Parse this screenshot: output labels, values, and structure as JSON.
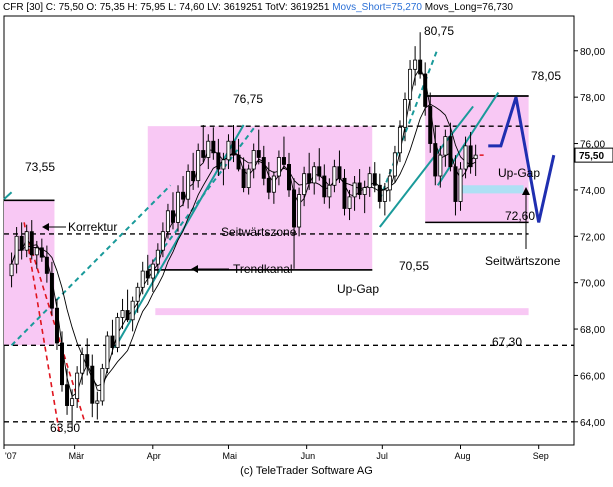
{
  "header": {
    "symbol": "CFR [30]",
    "close": "C: 75,50",
    "open": "O: 75,35",
    "high": "H: 75,95",
    "low": "L: 74,60",
    "lv": "LV: 3619251",
    "totv": "TotV: 3619251",
    "movs_short": "Movs_Short=75,270",
    "movs_long": "Movs_Long=76,730"
  },
  "footer": {
    "copyright": "(c) TeleTrader Software AG"
  },
  "colors": {
    "zone_fill": "#f8c8f4",
    "candle_up": "#ffffff",
    "candle_down": "#000000",
    "trend": "#1a9a9a",
    "correction": "#e0141e",
    "projection": "#1f2fb0",
    "price_marker": "#e0141e",
    "upgap_fill": "#aee0f4"
  },
  "chart_data": {
    "type": "candlestick",
    "instrument": "CFR",
    "y_axis": {
      "min": 63.0,
      "max": 81.5,
      "ticks": [
        "64,00",
        "66,00",
        "68,00",
        "70,00",
        "72,00",
        "74,00",
        "76,00",
        "78,00",
        "80,00"
      ],
      "tick_values": [
        64,
        66,
        68,
        70,
        72,
        74,
        76,
        78,
        80
      ],
      "position": "right"
    },
    "x_axis": {
      "labels": [
        "'07",
        "Mär",
        "Apr",
        "Mai",
        "Jun",
        "Jul",
        "Aug",
        "Sep"
      ],
      "label_positions_day": [
        0,
        28,
        59,
        89,
        120,
        150,
        181,
        212
      ],
      "range_day": [
        0,
        226
      ]
    },
    "last_price": "75,50",
    "last_value": 75.5,
    "candles_ohlc": [
      [
        3,
        70.3,
        71.3,
        69.8,
        70.8
      ],
      [
        5,
        70.8,
        72.4,
        70.4,
        72.0
      ],
      [
        7,
        72.0,
        72.6,
        71.0,
        71.4
      ],
      [
        9,
        71.4,
        72.5,
        71.1,
        72.2
      ],
      [
        11,
        72.2,
        72.7,
        71.0,
        71.2
      ],
      [
        13,
        71.2,
        71.8,
        70.6,
        71.5
      ],
      [
        15,
        71.5,
        71.9,
        70.9,
        71.1
      ],
      [
        17,
        71.1,
        71.6,
        70.0,
        70.4
      ],
      [
        19,
        70.4,
        70.9,
        68.6,
        68.9
      ],
      [
        21,
        68.9,
        69.3,
        67.1,
        67.4
      ],
      [
        23,
        67.4,
        67.9,
        65.3,
        65.6
      ],
      [
        25,
        65.6,
        66.3,
        64.3,
        64.7
      ],
      [
        27,
        64.7,
        65.4,
        63.6,
        65.0
      ],
      [
        29,
        65.0,
        66.4,
        64.6,
        66.1
      ],
      [
        31,
        66.1,
        67.2,
        65.6,
        66.9
      ],
      [
        33,
        66.9,
        67.6,
        66.0,
        66.4
      ],
      [
        35,
        66.4,
        66.9,
        64.2,
        64.8
      ],
      [
        37,
        64.8,
        65.3,
        64.1,
        64.9
      ],
      [
        39,
        64.9,
        66.5,
        64.7,
        66.3
      ],
      [
        41,
        66.3,
        67.9,
        66.1,
        67.7
      ],
      [
        43,
        67.7,
        68.4,
        66.9,
        67.2
      ],
      [
        45,
        67.2,
        68.7,
        67.0,
        68.5
      ],
      [
        47,
        68.5,
        69.3,
        68.0,
        68.8
      ],
      [
        49,
        68.8,
        69.7,
        68.3,
        68.4
      ],
      [
        51,
        68.4,
        69.4,
        67.9,
        69.2
      ],
      [
        53,
        69.2,
        70.0,
        68.7,
        69.8
      ],
      [
        55,
        69.8,
        70.9,
        69.5,
        70.5
      ],
      [
        57,
        70.5,
        71.2,
        69.9,
        70.2
      ],
      [
        59,
        70.2,
        71.0,
        69.6,
        70.8
      ],
      [
        61,
        70.8,
        71.7,
        70.4,
        71.4
      ],
      [
        63,
        71.4,
        72.6,
        71.1,
        72.2
      ],
      [
        65,
        72.2,
        73.4,
        71.9,
        73.1
      ],
      [
        67,
        73.1,
        73.9,
        72.3,
        72.6
      ],
      [
        69,
        72.6,
        74.2,
        72.2,
        73.9
      ],
      [
        71,
        73.9,
        74.6,
        73.3,
        73.6
      ],
      [
        73,
        73.6,
        75.1,
        73.2,
        74.8
      ],
      [
        75,
        74.8,
        75.6,
        74.0,
        74.4
      ],
      [
        77,
        74.4,
        76.0,
        74.1,
        75.7
      ],
      [
        79,
        75.7,
        76.8,
        75.2,
        75.4
      ],
      [
        81,
        75.4,
        76.4,
        74.9,
        76.1
      ],
      [
        83,
        76.1,
        76.7,
        75.3,
        75.6
      ],
      [
        85,
        75.6,
        76.2,
        74.6,
        74.9
      ],
      [
        87,
        74.9,
        75.6,
        74.2,
        75.3
      ],
      [
        89,
        75.3,
        76.4,
        74.9,
        76.1
      ],
      [
        91,
        76.1,
        76.8,
        75.2,
        75.5
      ],
      [
        93,
        75.5,
        76.2,
        74.8,
        74.9
      ],
      [
        95,
        74.9,
        75.4,
        73.9,
        74.1
      ],
      [
        97,
        74.1,
        75.1,
        73.8,
        74.9
      ],
      [
        99,
        74.9,
        76.0,
        74.5,
        75.7
      ],
      [
        101,
        75.7,
        76.6,
        75.1,
        75.4
      ],
      [
        103,
        75.4,
        75.9,
        74.2,
        74.5
      ],
      [
        105,
        74.5,
        75.2,
        73.6,
        73.9
      ],
      [
        107,
        73.9,
        74.8,
        73.4,
        74.6
      ],
      [
        109,
        74.6,
        75.7,
        74.2,
        75.4
      ],
      [
        111,
        75.4,
        76.3,
        74.9,
        75.1
      ],
      [
        113,
        75.1,
        75.6,
        73.7,
        74.0
      ],
      [
        115,
        74.0,
        74.5,
        70.6,
        72.4
      ],
      [
        117,
        72.4,
        74.1,
        72.0,
        73.8
      ],
      [
        119,
        73.8,
        75.0,
        73.3,
        74.7
      ],
      [
        121,
        74.7,
        75.6,
        74.0,
        74.3
      ],
      [
        123,
        74.3,
        75.2,
        73.8,
        75.0
      ],
      [
        125,
        75.0,
        75.8,
        74.4,
        74.6
      ],
      [
        127,
        74.6,
        75.1,
        73.4,
        73.7
      ],
      [
        129,
        73.7,
        74.5,
        73.2,
        74.2
      ],
      [
        131,
        74.2,
        75.3,
        73.9,
        75.0
      ],
      [
        133,
        75.0,
        75.7,
        74.3,
        74.5
      ],
      [
        135,
        74.5,
        74.9,
        72.9,
        73.2
      ],
      [
        137,
        73.2,
        74.0,
        72.7,
        73.7
      ],
      [
        139,
        73.7,
        74.6,
        73.1,
        74.3
      ],
      [
        141,
        74.3,
        74.9,
        73.6,
        73.8
      ],
      [
        143,
        73.8,
        74.4,
        73.0,
        74.1
      ],
      [
        145,
        74.1,
        75.0,
        73.7,
        74.7
      ],
      [
        147,
        74.7,
        75.2,
        73.9,
        74.2
      ],
      [
        149,
        74.2,
        74.7,
        73.2,
        73.5
      ],
      [
        151,
        73.5,
        74.3,
        72.9,
        74.0
      ],
      [
        153,
        74.0,
        74.9,
        73.5,
        74.6
      ],
      [
        155,
        74.6,
        75.9,
        74.3,
        75.6
      ],
      [
        157,
        75.6,
        77.0,
        75.2,
        76.7
      ],
      [
        159,
        76.7,
        78.2,
        76.1,
        77.9
      ],
      [
        161,
        77.9,
        79.6,
        77.4,
        79.2
      ],
      [
        163,
        79.2,
        80.2,
        78.5,
        79.6
      ],
      [
        165,
        79.6,
        80.8,
        78.8,
        79.0
      ],
      [
        167,
        79.0,
        79.5,
        77.2,
        77.6
      ],
      [
        169,
        77.6,
        78.2,
        75.6,
        76.0
      ],
      [
        171,
        76.0,
        76.8,
        74.2,
        74.6
      ],
      [
        173,
        74.6,
        75.9,
        74.1,
        75.5
      ],
      [
        175,
        75.5,
        76.6,
        75.0,
        76.3
      ],
      [
        177,
        76.3,
        76.9,
        74.8,
        75.0
      ],
      [
        179,
        75.0,
        75.5,
        72.9,
        73.5
      ],
      [
        181,
        73.5,
        75.2,
        73.1,
        74.9
      ],
      [
        183,
        74.9,
        76.3,
        74.5,
        75.9
      ],
      [
        185,
        75.9,
        76.5,
        74.7,
        75.0
      ],
      [
        187,
        75.35,
        75.95,
        74.6,
        75.5
      ]
    ],
    "annotations": [
      {
        "text": "80,75",
        "value": 80.75,
        "kind": "high-label"
      },
      {
        "text": "78,05",
        "value": 78.05,
        "kind": "resistance"
      },
      {
        "text": "76,75",
        "value": 76.75,
        "kind": "resistance"
      },
      {
        "text": "73,55",
        "value": 73.55,
        "kind": "resistance"
      },
      {
        "text": "72,60",
        "value": 72.6,
        "kind": "support"
      },
      {
        "text": "70,55",
        "value": 70.55,
        "kind": "support"
      },
      {
        "text": "67,30",
        "value": 67.3,
        "kind": "support"
      },
      {
        "text": "63,50",
        "value": 63.5,
        "kind": "low-label"
      },
      {
        "text": "Korrektur",
        "kind": "note"
      },
      {
        "text": "Trendkanal",
        "kind": "note"
      },
      {
        "text": "Seitwärtszone",
        "kind": "zone"
      },
      {
        "text": "Seitwärtszone",
        "kind": "zone-arrow"
      },
      {
        "text": "Up-Gap",
        "kind": "gap"
      },
      {
        "text": "Up-Gap",
        "kind": "gap"
      }
    ],
    "horizontal_levels": [
      64.0,
      67.3,
      70.55,
      72.1,
      73.55,
      76.75,
      78.05
    ],
    "zones": [
      {
        "name": "Seitwärtszone",
        "day_from": 0,
        "day_to": 20,
        "y_from": 67.3,
        "y_to": 73.55
      },
      {
        "name": "Seitwärtszone",
        "day_from": 57,
        "day_to": 146,
        "y_from": 70.55,
        "y_to": 76.75
      },
      {
        "name": "Seitwärtszone",
        "day_from": 167,
        "day_to": 208,
        "y_from": 72.6,
        "y_to": 78.05
      }
    ],
    "upgap": {
      "day_from": 60,
      "day_to": 208,
      "y_from": 68.6,
      "y_to": 68.9
    },
    "moving_averages": [
      {
        "name": "Movs_Short",
        "value": 75.27
      },
      {
        "name": "Movs_Long",
        "value": 76.73
      }
    ],
    "projection_path": [
      [
        192,
        75.9
      ],
      [
        197,
        75.9
      ],
      [
        203,
        78.0
      ],
      [
        212,
        72.6
      ],
      [
        218,
        75.5
      ]
    ],
    "grid": false,
    "legend": "top-left"
  },
  "labels": {
    "high": "80,75",
    "r1": "78,05",
    "r2": "76,75",
    "r3": "73,55",
    "s1": "72,60",
    "s2": "70,55",
    "s3": "67,30",
    "low": "63,50",
    "korrektur": "Korrektur",
    "trendkanal": "Trendkanal",
    "seitwaerts": "Seitwärtszone",
    "seitwaerts2": "Seitwärtszone",
    "upgap": "Up-Gap",
    "upgap2": "Up-Gap"
  }
}
